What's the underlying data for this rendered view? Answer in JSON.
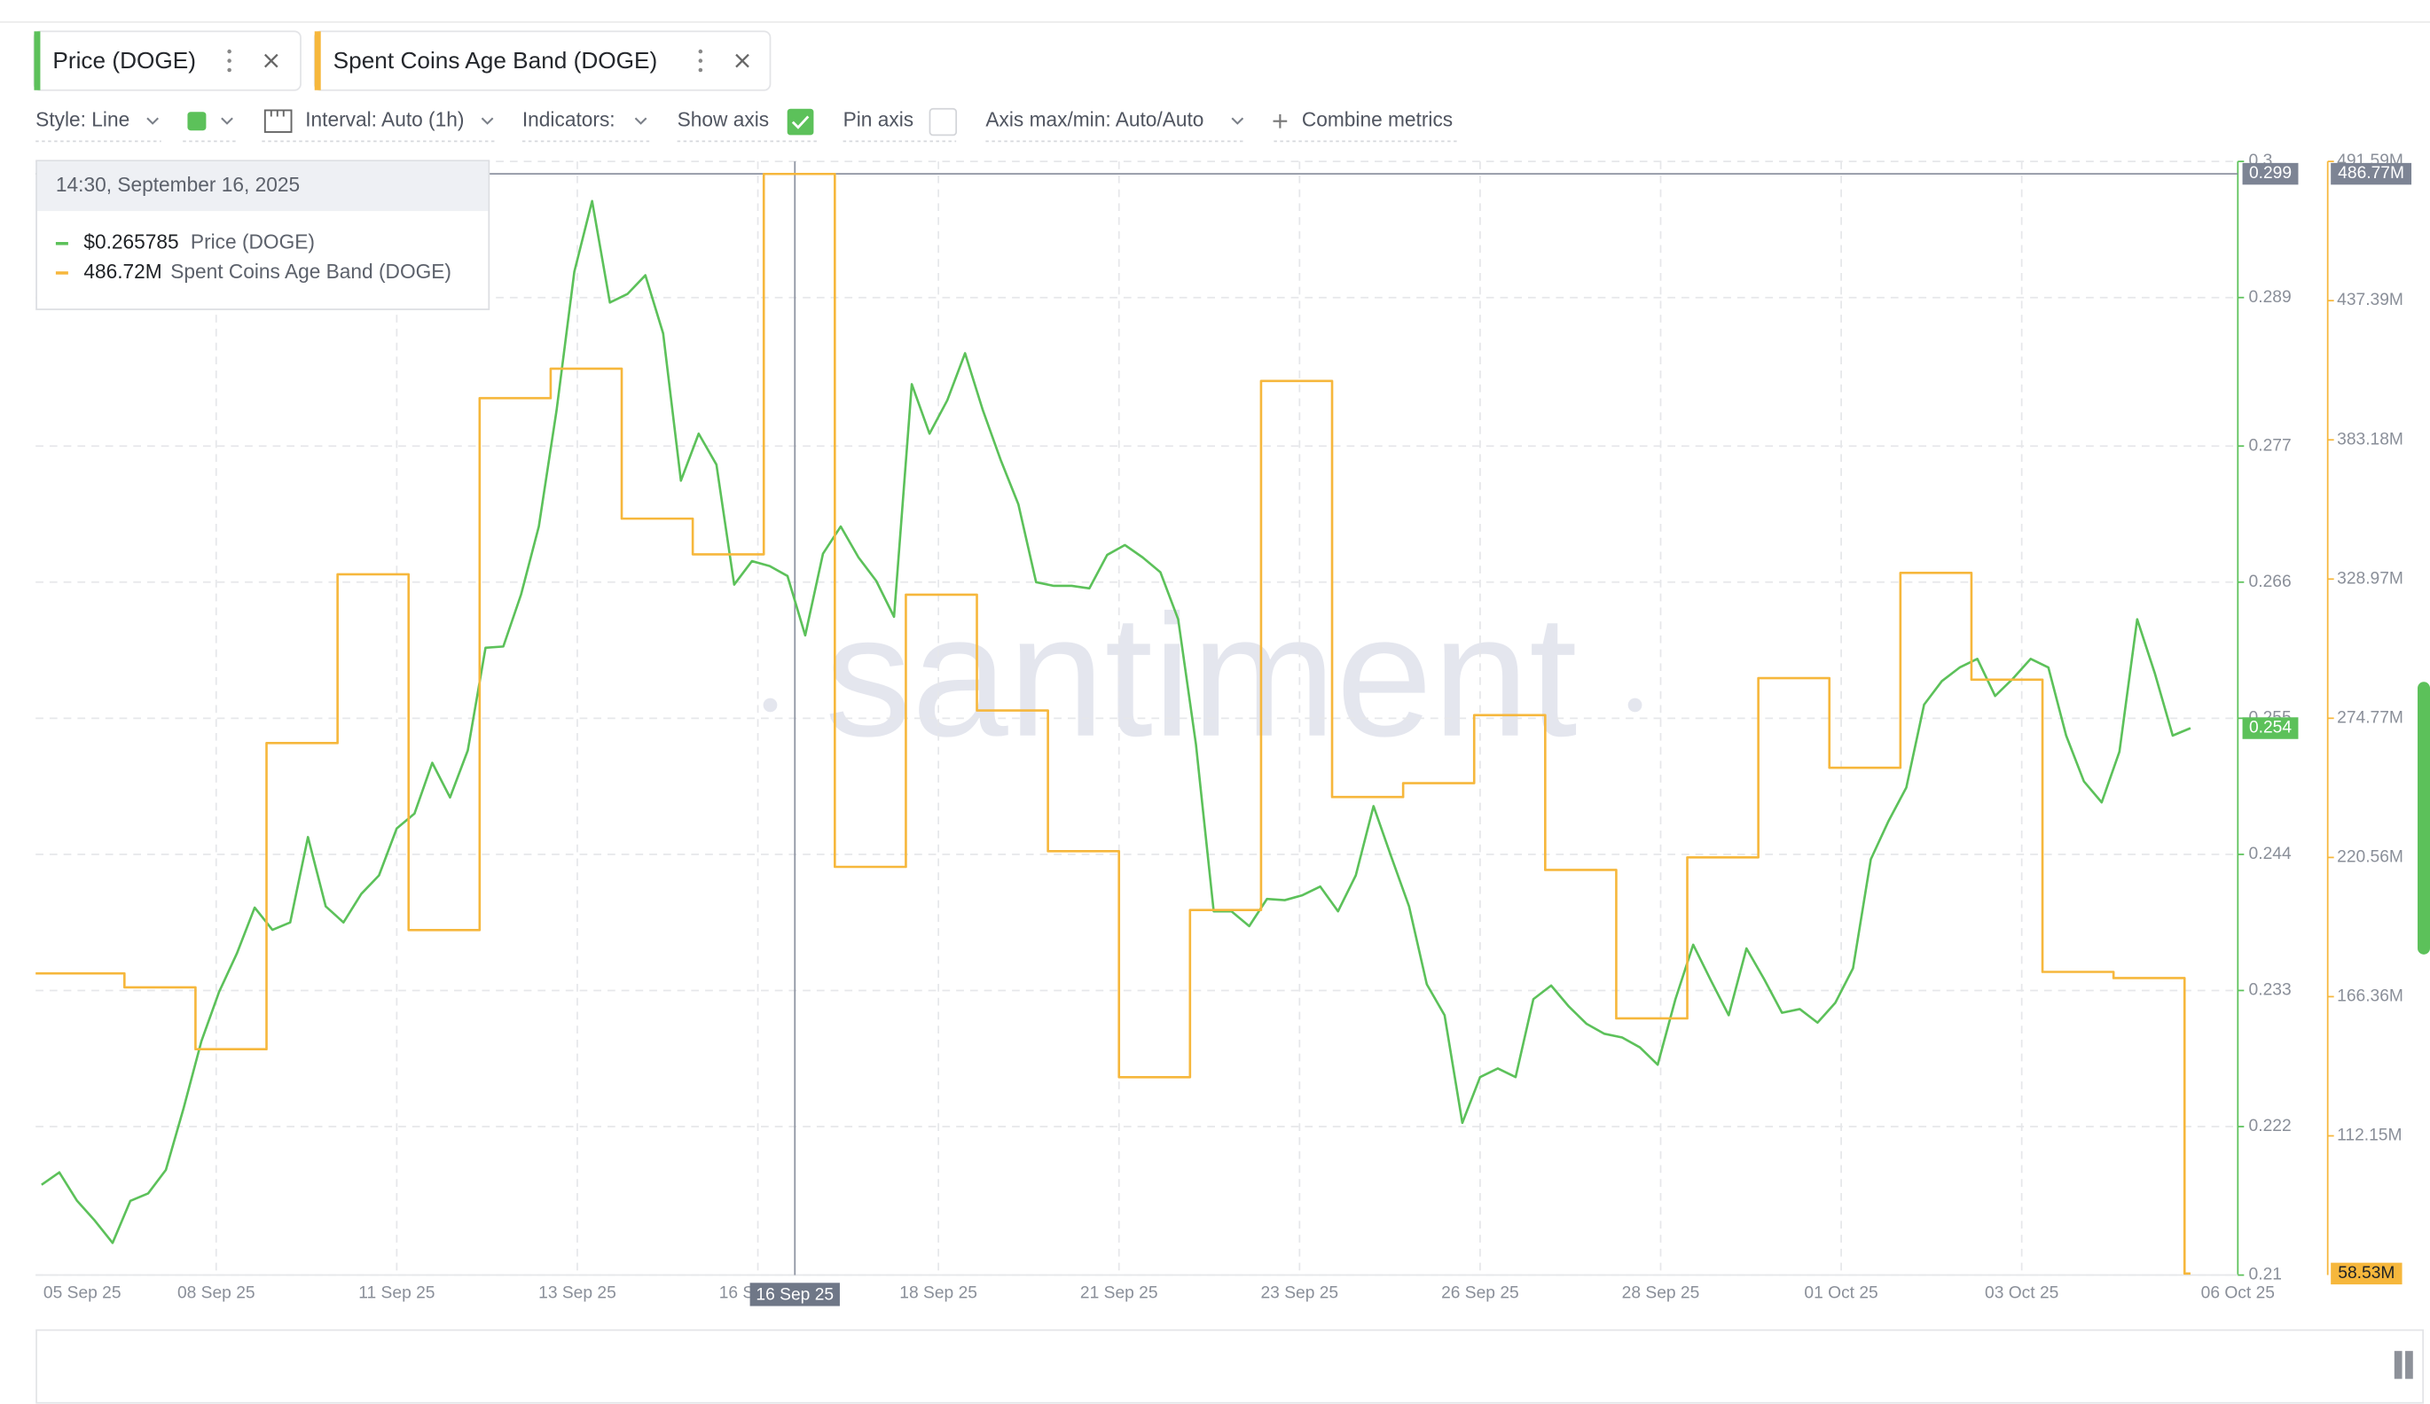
{
  "tabs_close": null,
  "toolbar": {
    "style": "Style: Line",
    "interval": "Interval: Auto (1h)",
    "indicators": "Indicators:",
    "show_axis": "Show axis",
    "pin_axis": "Pin axis",
    "axis_range": "Axis max/min: Auto/Auto",
    "combine": "Combine metrics"
  },
  "tooltip": {
    "time": "14:30, September 16, 2025",
    "rows": [
      "$0.265785",
      "486.72M"
    ]
  },
  "watermark": "santiment",
  "chart_data": {
    "type": "line",
    "grid": true,
    "xlim": [
      "2025-09-05T22:00",
      "2025-10-06T22:00"
    ],
    "xticks": [
      {
        "value": "2025-09-05T22:00",
        "label": "05 Sep 25"
      },
      {
        "value": "2025-09-08T11:00",
        "label": "08 Sep 25"
      },
      {
        "value": "2025-09-11T00:00",
        "label": "11 Sep 25"
      },
      {
        "value": "2025-09-13T13:00",
        "label": "13 Sep 25"
      },
      {
        "value": "2025-09-16T02:00",
        "label": "16 Sep 25"
      },
      {
        "value": "2025-09-18T15:00",
        "label": "18 Sep 25"
      },
      {
        "value": "2025-09-21T04:00",
        "label": "21 Sep 25"
      },
      {
        "value": "2025-09-23T17:00",
        "label": "23 Sep 25"
      },
      {
        "value": "2025-09-26T06:00",
        "label": "26 Sep 25"
      },
      {
        "value": "2025-09-28T19:00",
        "label": "28 Sep 25"
      },
      {
        "value": "2025-10-01T08:00",
        "label": "01 Oct 25"
      },
      {
        "value": "2025-10-03T21:00",
        "label": "03 Oct 25"
      },
      {
        "value": "2025-10-06T22:00",
        "label": "06 Oct 25"
      }
    ],
    "ylim": [
      0.21,
      0.3
    ],
    "yticks": [
      0.21,
      0.222,
      0.233,
      0.244,
      0.255,
      0.266,
      0.277,
      0.289,
      0.3
    ],
    "y2lim": [
      57.94,
      491.59
    ],
    "y2ticks": [
      {
        "value": 112.15,
        "label": "112.15M"
      },
      {
        "value": 166.36,
        "label": "166.36M"
      },
      {
        "value": 220.56,
        "label": "220.56M"
      },
      {
        "value": 274.77,
        "label": "274.77M"
      },
      {
        "value": 328.97,
        "label": "328.97M"
      },
      {
        "value": 383.18,
        "label": "383.18M"
      },
      {
        "value": 437.39,
        "label": "437.39M"
      },
      {
        "value": 491.59,
        "label": "491.59M"
      }
    ],
    "crosshair": {
      "x": {
        "value": "2025-09-16T14:30",
        "label": "16 Sep 25"
      },
      "y": 0.299,
      "y2": {
        "value": 486.77,
        "label": "486.77M"
      }
    },
    "series": [
      {
        "name": "Price (DOGE)",
        "color": "#5cc15a",
        "axis": "y",
        "last_label": "0.254",
        "x": [
          "2025-09-06T00:00",
          "2025-09-06T06:00",
          "2025-09-06T12:00",
          "2025-09-06T18:00",
          "2025-09-07T00:00",
          "2025-09-07T06:00",
          "2025-09-07T12:00",
          "2025-09-07T18:00",
          "2025-09-08T00:00",
          "2025-09-08T06:00",
          "2025-09-08T12:00",
          "2025-09-08T18:00",
          "2025-09-09T00:00",
          "2025-09-09T06:00",
          "2025-09-09T12:00",
          "2025-09-09T18:00",
          "2025-09-10T00:00",
          "2025-09-10T06:00",
          "2025-09-10T12:00",
          "2025-09-10T18:00",
          "2025-09-11T00:00",
          "2025-09-11T06:00",
          "2025-09-11T12:00",
          "2025-09-11T18:00",
          "2025-09-12T00:00",
          "2025-09-12T06:00",
          "2025-09-12T12:00",
          "2025-09-12T18:00",
          "2025-09-13T00:00",
          "2025-09-13T06:00",
          "2025-09-13T12:00",
          "2025-09-13T18:00",
          "2025-09-14T00:00",
          "2025-09-14T06:00",
          "2025-09-14T12:00",
          "2025-09-14T18:00",
          "2025-09-15T00:00",
          "2025-09-15T06:00",
          "2025-09-15T12:00",
          "2025-09-15T18:00",
          "2025-09-16T00:00",
          "2025-09-16T06:00",
          "2025-09-16T12:00",
          "2025-09-16T18:00",
          "2025-09-17T00:00",
          "2025-09-17T06:00",
          "2025-09-17T12:00",
          "2025-09-17T18:00",
          "2025-09-18T00:00",
          "2025-09-18T06:00",
          "2025-09-18T12:00",
          "2025-09-18T18:00",
          "2025-09-19T00:00",
          "2025-09-19T06:00",
          "2025-09-19T12:00",
          "2025-09-19T18:00",
          "2025-09-20T00:00",
          "2025-09-20T06:00",
          "2025-09-20T12:00",
          "2025-09-20T18:00",
          "2025-09-21T00:00",
          "2025-09-21T06:00",
          "2025-09-21T12:00",
          "2025-09-21T18:00",
          "2025-09-22T00:00",
          "2025-09-22T06:00",
          "2025-09-22T12:00",
          "2025-09-22T18:00",
          "2025-09-23T00:00",
          "2025-09-23T06:00",
          "2025-09-23T12:00",
          "2025-09-23T18:00",
          "2025-09-24T00:00",
          "2025-09-24T06:00",
          "2025-09-24T12:00",
          "2025-09-24T18:00",
          "2025-09-25T00:00",
          "2025-09-25T06:00",
          "2025-09-25T12:00",
          "2025-09-25T18:00",
          "2025-09-26T00:00",
          "2025-09-26T06:00",
          "2025-09-26T12:00",
          "2025-09-26T18:00",
          "2025-09-27T00:00",
          "2025-09-27T06:00",
          "2025-09-27T12:00",
          "2025-09-27T18:00",
          "2025-09-28T00:00",
          "2025-09-28T06:00",
          "2025-09-28T12:00",
          "2025-09-28T18:00",
          "2025-09-29T00:00",
          "2025-09-29T06:00",
          "2025-09-29T12:00",
          "2025-09-29T18:00",
          "2025-09-30T00:00",
          "2025-09-30T06:00",
          "2025-09-30T12:00",
          "2025-09-30T18:00",
          "2025-10-01T00:00",
          "2025-10-01T06:00",
          "2025-10-01T12:00",
          "2025-10-01T18:00",
          "2025-10-02T00:00",
          "2025-10-02T06:00",
          "2025-10-02T12:00",
          "2025-10-02T18:00",
          "2025-10-03T00:00",
          "2025-10-03T06:00",
          "2025-10-03T12:00",
          "2025-10-03T18:00",
          "2025-10-04T00:00",
          "2025-10-04T06:00",
          "2025-10-04T12:00",
          "2025-10-04T18:00",
          "2025-10-05T00:00",
          "2025-10-05T06:00",
          "2025-10-05T12:00",
          "2025-10-05T18:00",
          "2025-10-06T00:00",
          "2025-10-06T06:00"
        ],
        "values": [
          0.2173,
          0.2183,
          0.216,
          0.2144,
          0.2126,
          0.216,
          0.2166,
          0.2185,
          0.2235,
          0.2289,
          0.2329,
          0.236,
          0.2397,
          0.2379,
          0.2385,
          0.2454,
          0.2398,
          0.2385,
          0.2408,
          0.2423,
          0.2461,
          0.2473,
          0.2514,
          0.2486,
          0.2524,
          0.2607,
          0.2608,
          0.265,
          0.2705,
          0.2799,
          0.2911,
          0.2968,
          0.2886,
          0.2893,
          0.2908,
          0.2861,
          0.2742,
          0.278,
          0.2755,
          0.2658,
          0.2677,
          0.2673,
          0.2665,
          0.2617,
          0.2683,
          0.2705,
          0.268,
          0.2661,
          0.2632,
          0.282,
          0.278,
          0.2807,
          0.2845,
          0.2799,
          0.2759,
          0.2723,
          0.266,
          0.2657,
          0.2657,
          0.2655,
          0.2682,
          0.269,
          0.268,
          0.2668,
          0.263,
          0.2529,
          0.2394,
          0.2394,
          0.2382,
          0.2404,
          0.2403,
          0.2407,
          0.2414,
          0.2394,
          0.2423,
          0.2479,
          0.2438,
          0.2398,
          0.2335,
          0.231,
          0.2223,
          0.226,
          0.2267,
          0.226,
          0.2323,
          0.2334,
          0.2317,
          0.2303,
          0.2295,
          0.2292,
          0.2284,
          0.227,
          0.2323,
          0.2367,
          0.2338,
          0.231,
          0.2364,
          0.2339,
          0.2312,
          0.2315,
          0.2304,
          0.232,
          0.2348,
          0.2436,
          0.2467,
          0.2494,
          0.2561,
          0.258,
          0.2591,
          0.2598,
          0.2568,
          0.2582,
          0.2598,
          0.2591,
          0.2536,
          0.2499,
          0.2482,
          0.2523,
          0.263,
          0.2586,
          0.2536,
          0.2542
        ]
      },
      {
        "name": "Spent Coins Age Band (DOGE)",
        "color": "#f6b73c",
        "axis": "y2",
        "step": "after",
        "last_label": "58.53M",
        "x": [
          "2025-09-05T22:00",
          "2025-09-07T04:00",
          "2025-09-08T04:00",
          "2025-09-09T04:00",
          "2025-09-10T04:00",
          "2025-09-11T04:00",
          "2025-09-12T04:00",
          "2025-09-13T04:00",
          "2025-09-14T04:00",
          "2025-09-15T04:00",
          "2025-09-16T04:00",
          "2025-09-17T04:00",
          "2025-09-18T04:00",
          "2025-09-19T04:00",
          "2025-09-20T04:00",
          "2025-09-21T04:00",
          "2025-09-22T04:00",
          "2025-09-23T04:00",
          "2025-09-24T04:00",
          "2025-09-25T04:00",
          "2025-09-26T04:00",
          "2025-09-27T04:00",
          "2025-09-28T04:00",
          "2025-09-29T04:00",
          "2025-09-30T04:00",
          "2025-10-01T04:00",
          "2025-10-02T04:00",
          "2025-10-03T04:00",
          "2025-10-04T04:00",
          "2025-10-05T04:00",
          "2025-10-06T04:00"
        ],
        "values": [
          175.4,
          170.0,
          145.9,
          265.1,
          330.8,
          192.3,
          399.4,
          410.9,
          352.5,
          338.6,
          486.72,
          216.9,
          322.9,
          277.8,
          223.0,
          135.0,
          200.1,
          406.1,
          244.1,
          249.5,
          276.0,
          215.7,
          157.9,
          220.6,
          290.4,
          255.5,
          331.4,
          289.8,
          176.0,
          173.6,
          58.53
        ]
      }
    ]
  }
}
